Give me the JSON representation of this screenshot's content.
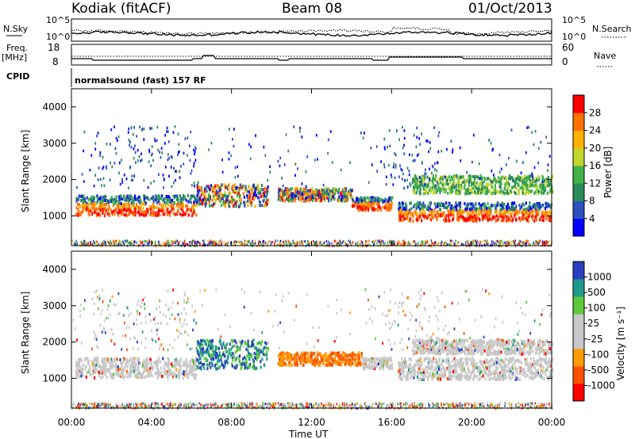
{
  "header": {
    "station": "Kodiak (fitACF)",
    "beam": "Beam 08",
    "date": "01/Oct/2013"
  },
  "side_labels": {
    "nsky": "N.Sky",
    "nsearch": "N.Search",
    "freq": "Freq.",
    "mhz": "[MHz]",
    "nave": "Nave",
    "cpid": "CPID"
  },
  "cpid_text": "normalsound (fast) 157 RF",
  "colors": {
    "power_scale": [
      "#0000ff",
      "#2e4fbf",
      "#2a8a5a",
      "#3fb24a",
      "#c2d62b",
      "#ffb000",
      "#ff7000",
      "#ff0000"
    ],
    "velocity_scale": [
      "#ff0000",
      "#ff5000",
      "#ff9a00",
      "#c8c8c8",
      "#c8c8c8",
      "#5ec83c",
      "#1f9a8c",
      "#2a3fbf"
    ],
    "ground_scatter": "#c8c8c8"
  },
  "chart_data": [
    {
      "type": "line",
      "title": "",
      "series": [
        {
          "name": "N.Sky",
          "style": "solid"
        },
        {
          "name": "N.Search",
          "style": "dotted"
        }
      ],
      "left_ticks": [
        "10^5",
        "10^0"
      ],
      "right_ticks": [
        "10^5",
        "10^0"
      ],
      "scale": "log"
    },
    {
      "type": "line",
      "series": [
        {
          "name": "Freq.",
          "style": "solid",
          "x": [
            0,
            1.0,
            1.1,
            6.0,
            6.1,
            6.5,
            6.6,
            7.1,
            7.2,
            10.3,
            10.4,
            10.8,
            10.9,
            15.0,
            15.1,
            15.8,
            15.9,
            19.5,
            19.6,
            24
          ],
          "y": [
            11,
            11,
            10,
            10,
            11,
            11,
            13,
            13,
            11,
            11,
            10,
            10,
            11,
            11,
            10,
            10,
            12,
            12,
            11,
            11
          ]
        },
        {
          "name": "Nave",
          "style": "dotted"
        }
      ],
      "left_ticks": [
        "18",
        "8"
      ],
      "right_ticks": [
        "60",
        "0"
      ],
      "ylim": [
        8,
        18
      ]
    },
    {
      "type": "heatmap",
      "quantity": "Power",
      "ylabel": "Slant Range [km]",
      "colorbar_label": "Power [dB]",
      "colorbar_ticks": [
        "28",
        "24",
        "20",
        "16",
        "12",
        "8",
        "4"
      ],
      "y_ticks": [
        "4000",
        "3000",
        "2000",
        "1000"
      ],
      "xlim": [
        0,
        24
      ],
      "ylim": [
        180,
        4500
      ],
      "bands": [
        {
          "t0": 0.2,
          "t1": 6.2,
          "r0": 1050,
          "r1": 1600,
          "level": "high"
        },
        {
          "t0": 6.2,
          "t1": 9.8,
          "r0": 1300,
          "r1": 1900,
          "level": "mid"
        },
        {
          "t0": 10.3,
          "t1": 14.0,
          "r0": 1450,
          "r1": 1800,
          "level": "mid"
        },
        {
          "t0": 14.0,
          "t1": 16.0,
          "r0": 1200,
          "r1": 1550,
          "level": "high"
        },
        {
          "t0": 16.3,
          "t1": 24,
          "r0": 900,
          "r1": 1400,
          "level": "high"
        },
        {
          "t0": 17.0,
          "t1": 24,
          "r0": 1650,
          "r1": 2150,
          "level": "low"
        }
      ]
    },
    {
      "type": "heatmap",
      "quantity": "Velocity",
      "ylabel": "Slant Range [km]",
      "xlabel": "Time UT",
      "colorbar_label": "Velocity [m s⁻¹]",
      "colorbar_ticks": [
        "1000",
        "500",
        "100",
        "25",
        "-25",
        "-100",
        "-500",
        "-1000"
      ],
      "y_ticks": [
        "4000",
        "3000",
        "2000",
        "1000"
      ],
      "x_ticks": [
        "00:00",
        "04:00",
        "08:00",
        "12:00",
        "16:00",
        "20:00",
        "00:00"
      ],
      "xlim": [
        0,
        24
      ],
      "ylim": [
        180,
        4500
      ],
      "bands": [
        {
          "t0": 0.2,
          "t1": 6.2,
          "r0": 1050,
          "r1": 1600,
          "level": "ground"
        },
        {
          "t0": 6.2,
          "t1": 9.8,
          "r0": 1300,
          "r1": 2100,
          "level": "positive"
        },
        {
          "t0": 10.3,
          "t1": 14.5,
          "r0": 1400,
          "r1": 1750,
          "level": "negative"
        },
        {
          "t0": 14.5,
          "t1": 16.0,
          "r0": 1300,
          "r1": 1600,
          "level": "ground"
        },
        {
          "t0": 16.3,
          "t1": 24,
          "r0": 1000,
          "r1": 1600,
          "level": "ground"
        },
        {
          "t0": 17.0,
          "t1": 24,
          "r0": 1700,
          "r1": 2100,
          "level": "ground"
        }
      ]
    }
  ]
}
